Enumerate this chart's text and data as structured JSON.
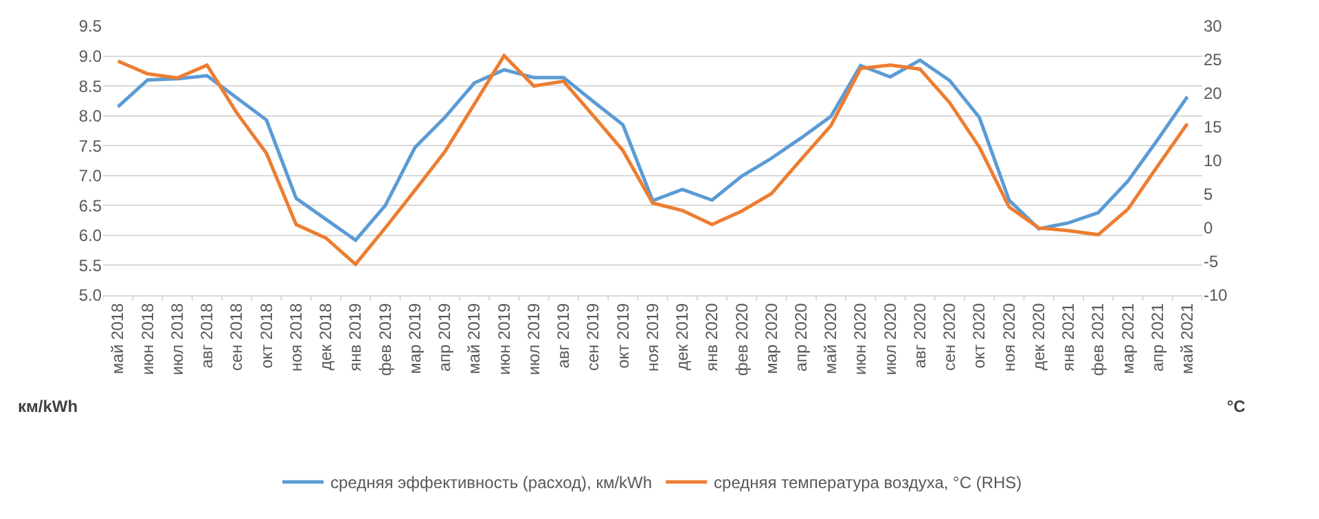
{
  "chart_data": {
    "type": "line",
    "ylabel": "км/kWh",
    "y2label": "°C",
    "categories": [
      "май 2018",
      "июн 2018",
      "июл 2018",
      "авг 2018",
      "сен 2018",
      "окт 2018",
      "ноя 2018",
      "дек 2018",
      "янв 2019",
      "фев 2019",
      "мар 2019",
      "апр 2019",
      "май 2019",
      "июн 2019",
      "июл 2019",
      "авг 2019",
      "сен 2019",
      "окт 2019",
      "ноя 2019",
      "дек 2019",
      "янв 2020",
      "фев 2020",
      "мар 2020",
      "апр 2020",
      "май 2020",
      "июн 2020",
      "июл 2020",
      "авг 2020",
      "сен 2020",
      "окт 2020",
      "ноя 2020",
      "дек 2020",
      "янв 2021",
      "фев 2021",
      "мар 2021",
      "апр 2021",
      "май 2021"
    ],
    "series": [
      {
        "name": "средняя эффективность (расход), км/kWh",
        "color": "#5b9bd5",
        "values": [
          8.15,
          8.6,
          8.62,
          8.67,
          8.3,
          7.93,
          6.62,
          6.27,
          5.92,
          6.5,
          7.47,
          7.97,
          8.55,
          8.77,
          8.64,
          8.64,
          8.24,
          7.85,
          6.58,
          6.77,
          6.59,
          6.99,
          7.29,
          7.63,
          7.99,
          8.84,
          8.65,
          8.93,
          8.59,
          7.97,
          6.59,
          6.11,
          6.21,
          6.38,
          6.91,
          7.6,
          8.32
        ]
      },
      {
        "name": "средняя температура воздуха, °C (RHS)",
        "color": "#ed7d31",
        "axis": "y2",
        "values": [
          24.8,
          22.9,
          22.3,
          24.2,
          17.1,
          11.1,
          0.5,
          -1.5,
          -5.4,
          0.0,
          5.6,
          11.3,
          18.4,
          25.6,
          21.1,
          21.8,
          16.7,
          11.5,
          3.7,
          2.6,
          0.5,
          2.5,
          5.1,
          10.2,
          15.2,
          23.7,
          24.2,
          23.6,
          18.6,
          12.0,
          3.1,
          0.0,
          -0.4,
          -1.0,
          2.8,
          9.2,
          15.5
        ]
      }
    ],
    "ylim": [
      5.0,
      9.5
    ],
    "yticks": [
      {
        "value": 5.0,
        "label": "5.0"
      },
      {
        "value": 5.5,
        "label": "5.5"
      },
      {
        "value": 6.0,
        "label": "6.0"
      },
      {
        "value": 6.5,
        "label": "6.5"
      },
      {
        "value": 7.0,
        "label": "7.0"
      },
      {
        "value": 7.5,
        "label": "7.5"
      },
      {
        "value": 8.0,
        "label": "8.0"
      },
      {
        "value": 8.5,
        "label": "8.5"
      },
      {
        "value": 9.0,
        "label": "9.0"
      },
      {
        "value": 9.5,
        "label": "9.5"
      }
    ],
    "y2lim": [
      -10,
      30
    ],
    "y2ticks": [
      -10,
      -5,
      0,
      5,
      10,
      15,
      20,
      25,
      30
    ],
    "grid": "y",
    "legend": "bottom",
    "marker": "none",
    "line_style": "solid"
  }
}
